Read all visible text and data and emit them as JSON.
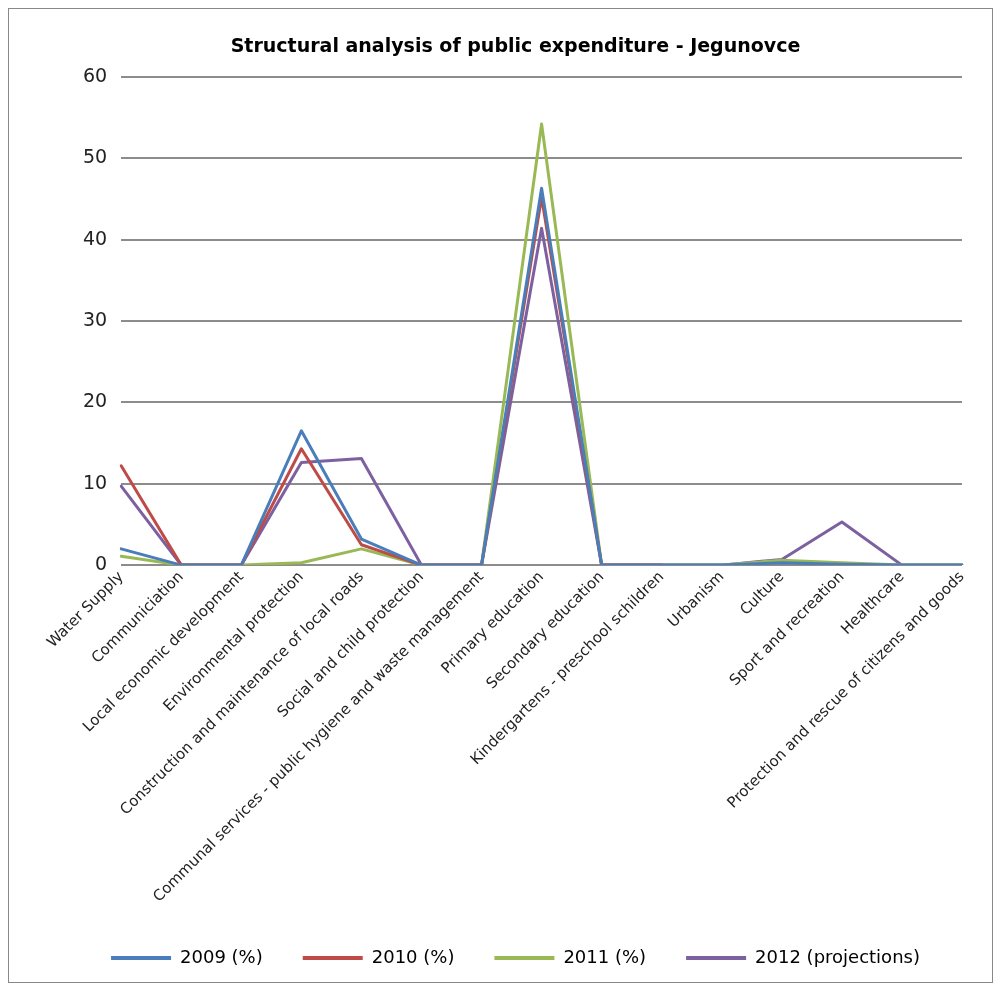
{
  "chart_data": {
    "type": "line",
    "title": "Structural analysis of public expenditure - Jegunovce",
    "categories": [
      "Water Supply",
      "Communiciation",
      "Local economic development",
      "Environmental protection",
      "Construction and maintenance of local roads",
      "Social and child protection",
      "Communal services - public hygiene and waste management",
      "Primary education",
      "Secondary education",
      "Kindergartens - preschool schildren",
      "Urbanism",
      "Culture",
      "Sport and recreation",
      "Healthcare",
      "Protection and rescue of citizens and goods"
    ],
    "series": [
      {
        "name": "2009 (%)",
        "color": "#4a7ebb",
        "values": [
          2.0,
          0,
          0,
          16.5,
          3.2,
          0,
          0,
          46.3,
          0,
          0,
          0,
          0.3,
          0.1,
          0,
          0
        ]
      },
      {
        "name": "2010 (%)",
        "color": "#be4b48",
        "values": [
          12.2,
          0,
          0,
          14.3,
          2.5,
          0,
          0,
          45.2,
          0,
          0,
          null,
          null,
          null,
          null,
          null
        ]
      },
      {
        "name": "2011 (%)",
        "color": "#98b954",
        "values": [
          1.1,
          0,
          0,
          0.3,
          2.0,
          0,
          0,
          54.2,
          0,
          0,
          0,
          0.6,
          0.3,
          0,
          0
        ]
      },
      {
        "name": "2012 (projections)",
        "color": "#7d60a0",
        "values": [
          9.7,
          0,
          0,
          12.6,
          13.1,
          0,
          0,
          41.4,
          0,
          0,
          0,
          0.7,
          5.3,
          0,
          0
        ]
      }
    ],
    "ylim": [
      0,
      60
    ],
    "yticks": [
      0,
      10,
      20,
      30,
      40,
      50,
      60
    ],
    "grid": "y",
    "legend": "bottom",
    "marker": "none",
    "line_style": "solid"
  }
}
